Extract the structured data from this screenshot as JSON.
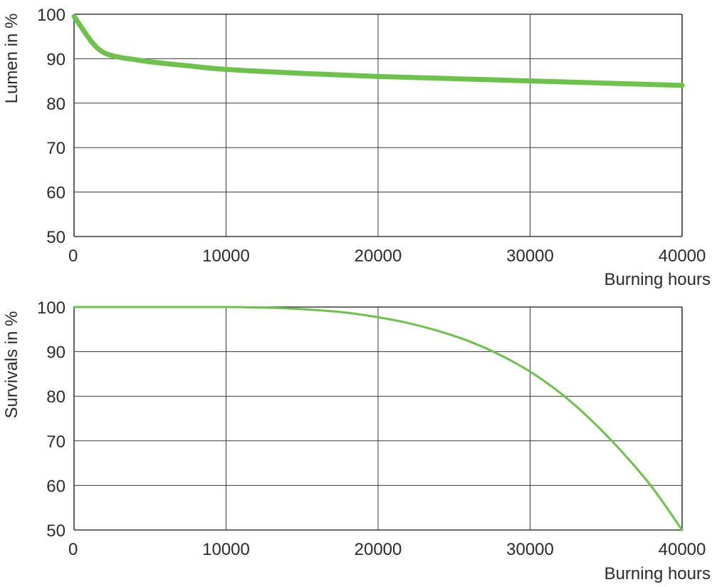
{
  "colors": {
    "series": "#6cc24a",
    "grid": "#3a3a3a",
    "text": "#2b2b2b"
  },
  "chart_data": [
    {
      "type": "line",
      "xlabel": "Burning hours",
      "ylabel": "Lumen in %",
      "xlim": [
        0,
        40000
      ],
      "ylim": [
        50,
        100
      ],
      "grid": true,
      "xticks": [
        "0",
        "10000",
        "20000",
        "30000",
        "40000"
      ],
      "yticks": [
        "50",
        "60",
        "70",
        "80",
        "90",
        "100"
      ],
      "series": [
        {
          "x": [
            0,
            500,
            1000,
            1500,
            2000,
            2500,
            3000,
            4000,
            5000,
            7500,
            10000,
            15000,
            20000,
            25000,
            30000,
            35000,
            40000
          ],
          "y": [
            99.5,
            97,
            94.5,
            92.5,
            91.3,
            90.7,
            90.3,
            89.8,
            89.3,
            88.4,
            87.6,
            86.7,
            86,
            85.5,
            85,
            84.5,
            84
          ]
        }
      ]
    },
    {
      "type": "line",
      "xlabel": "Burning hours",
      "ylabel": "Survivals in %",
      "xlim": [
        0,
        40000
      ],
      "ylim": [
        50,
        100
      ],
      "grid": true,
      "xticks": [
        "0",
        "10000",
        "20000",
        "30000",
        "40000"
      ],
      "yticks": [
        "50",
        "60",
        "70",
        "80",
        "90",
        "100"
      ],
      "series": [
        {
          "x": [
            0,
            5000,
            10000,
            12000,
            14000,
            16000,
            18000,
            20000,
            22000,
            24000,
            26000,
            28000,
            30000,
            32000,
            34000,
            36000,
            38000,
            40000
          ],
          "y": [
            100,
            100,
            100,
            99.9,
            99.7,
            99.3,
            98.7,
            97.7,
            96.4,
            94.6,
            92.3,
            89.3,
            85.5,
            80.7,
            74.7,
            67.7,
            59.7,
            50
          ]
        }
      ]
    }
  ]
}
